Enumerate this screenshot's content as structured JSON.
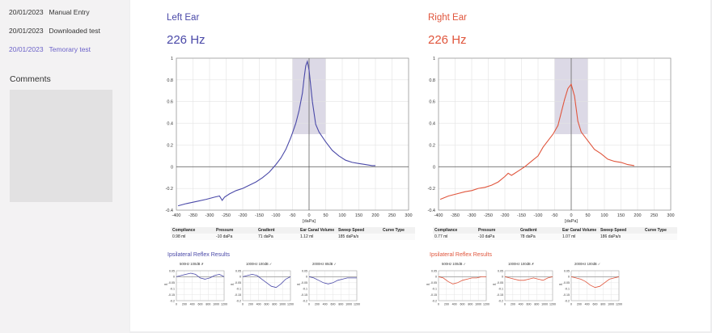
{
  "sidebar": {
    "sessions": [
      {
        "date": "20/01/2023",
        "label": "Manual Entry",
        "active": false
      },
      {
        "date": "20/01/2023",
        "label": "Downloaded test",
        "active": false
      },
      {
        "date": "20/01/2023",
        "label": "Temorary test",
        "active": true
      }
    ],
    "comments_title": "Comments"
  },
  "colors": {
    "left": "#4a49a8",
    "right": "#e0553c",
    "pressure_window": "#dcd9e6"
  },
  "ears": [
    {
      "key": "left",
      "title": "Left Ear",
      "frequency": "226 Hz",
      "table": {
        "headers": [
          "Compliance",
          "Pressure",
          "Gradient",
          "Ear Canal Volume",
          "Sweep Speed",
          "Curve Type"
        ],
        "values": [
          "0.98 ml",
          "-10 daPa",
          "71 daPa",
          "1.12 ml",
          "185 daPa/s",
          ""
        ]
      },
      "reflex": {
        "title": "Ipsilateral Reflex Results",
        "tests": [
          {
            "label": "500Hz   100dB ✗",
            "values": [
              0,
              0.01,
              0.02,
              0.03,
              0.02,
              -0.01,
              -0.02,
              -0.01,
              0.01,
              0.02,
              0
            ]
          },
          {
            "label": "1000Hz   100dB ✓",
            "values": [
              0,
              0.01,
              0.02,
              0.01,
              -0.02,
              -0.05,
              -0.08,
              -0.09,
              -0.06,
              -0.02,
              0
            ]
          },
          {
            "label": "2000Hz   80dB ✓",
            "values": [
              0,
              -0.01,
              -0.03,
              -0.05,
              -0.06,
              -0.05,
              -0.03,
              -0.02,
              -0.01,
              -0.01,
              -0.01
            ]
          }
        ]
      }
    },
    {
      "key": "right",
      "title": "Right Ear",
      "frequency": "226 Hz",
      "table": {
        "headers": [
          "Compliance",
          "Pressure",
          "Gradient",
          "Ear Canal Volume",
          "Sweep Speed",
          "Curve Type"
        ],
        "values": [
          "0.77 ml",
          "-10 daPa",
          "78 daPa",
          "1.07 ml",
          "186 daPa/s",
          ""
        ]
      },
      "reflex": {
        "title": "Ipsilateral Reflex Results",
        "tests": [
          {
            "label": "500Hz   100dB ✓",
            "values": [
              0,
              -0.01,
              -0.04,
              -0.06,
              -0.05,
              -0.03,
              -0.02,
              -0.01,
              -0.01,
              0,
              0
            ]
          },
          {
            "label": "1000Hz   100dB ✗",
            "values": [
              0,
              -0.01,
              -0.02,
              -0.03,
              -0.03,
              -0.02,
              -0.01,
              -0.02,
              -0.03,
              -0.01,
              0
            ]
          },
          {
            "label": "2000Hz   100dB ✓",
            "values": [
              0,
              -0.01,
              -0.02,
              -0.04,
              -0.07,
              -0.09,
              -0.08,
              -0.05,
              -0.02,
              -0.01,
              0
            ]
          }
        ]
      }
    }
  ],
  "chart_data": [
    {
      "type": "line",
      "title": "Left Ear 226 Hz",
      "xlabel": "[daPa]",
      "ylabel": "",
      "xlim": [
        -400,
        300
      ],
      "ylim": [
        -0.4,
        1
      ],
      "x_ticks": [
        -400,
        -350,
        -300,
        -250,
        -200,
        -150,
        -100,
        -50,
        0,
        50,
        100,
        150,
        200,
        250,
        300
      ],
      "y_ticks": [
        1,
        0.8,
        0.6,
        0.4,
        0.2,
        0,
        -0.2,
        -0.4
      ],
      "y_tick_labels": [
        "1",
        "0.8",
        "0.6",
        "0.4",
        "0.2",
        "0",
        "-0.2",
        "-0.4"
      ],
      "pressure_window": {
        "x": [
          -50,
          50
        ],
        "y": [
          0.3,
          1
        ]
      },
      "series": [
        {
          "name": "Left Ear",
          "x": [
            -395,
            -370,
            -340,
            -310,
            -285,
            -270,
            -262,
            -255,
            -240,
            -220,
            -200,
            -180,
            -160,
            -140,
            -120,
            -100,
            -85,
            -70,
            -55,
            -40,
            -30,
            -20,
            -15,
            -10,
            -5,
            0,
            10,
            20,
            30,
            50,
            70,
            90,
            110,
            130,
            150,
            170,
            190,
            200
          ],
          "y": [
            -0.36,
            -0.34,
            -0.32,
            -0.3,
            -0.28,
            -0.27,
            -0.31,
            -0.28,
            -0.25,
            -0.22,
            -0.2,
            -0.17,
            -0.14,
            -0.1,
            -0.05,
            0.02,
            0.08,
            0.16,
            0.27,
            0.4,
            0.52,
            0.68,
            0.82,
            0.93,
            0.97,
            0.89,
            0.6,
            0.39,
            0.32,
            0.23,
            0.15,
            0.1,
            0.06,
            0.04,
            0.03,
            0.02,
            0.01,
            0.01
          ]
        }
      ]
    },
    {
      "type": "line",
      "title": "Right Ear 226 Hz",
      "xlabel": "[daPa]",
      "ylabel": "",
      "xlim": [
        -400,
        300
      ],
      "ylim": [
        -0.4,
        1
      ],
      "x_ticks": [
        -400,
        -350,
        -300,
        -250,
        -200,
        -150,
        -100,
        -50,
        0,
        50,
        100,
        150,
        200,
        250,
        300
      ],
      "y_ticks": [
        1,
        0.8,
        0.6,
        0.4,
        0.2,
        0,
        -0.2,
        -0.4
      ],
      "y_tick_labels": [
        "1",
        "0.8",
        "0.6",
        "0.4",
        "0.2",
        "0",
        "-0.2",
        "-0.4"
      ],
      "pressure_window": {
        "x": [
          -50,
          50
        ],
        "y": [
          0.3,
          1
        ]
      },
      "series": [
        {
          "name": "Right Ear",
          "x": [
            -395,
            -370,
            -345,
            -320,
            -300,
            -280,
            -260,
            -240,
            -220,
            -200,
            -190,
            -180,
            -160,
            -140,
            -120,
            -100,
            -85,
            -70,
            -55,
            -40,
            -30,
            -20,
            -10,
            0,
            10,
            20,
            30,
            50,
            70,
            90,
            110,
            130,
            150,
            170,
            190
          ],
          "y": [
            -0.3,
            -0.27,
            -0.25,
            -0.23,
            -0.22,
            -0.2,
            -0.19,
            -0.17,
            -0.14,
            -0.09,
            -0.06,
            -0.08,
            -0.04,
            0.0,
            0.05,
            0.1,
            0.18,
            0.24,
            0.3,
            0.38,
            0.5,
            0.62,
            0.72,
            0.76,
            0.65,
            0.42,
            0.32,
            0.24,
            0.16,
            0.12,
            0.07,
            0.05,
            0.04,
            0.02,
            0.01
          ]
        }
      ]
    },
    {
      "type": "line",
      "title": "Left 500Hz 100dB",
      "x": [
        0,
        120,
        240,
        360,
        480,
        600,
        720,
        840,
        960,
        1080,
        1200
      ],
      "y": [
        0,
        0.01,
        0.02,
        0.03,
        0.02,
        -0.01,
        -0.02,
        -0.01,
        0.01,
        0.02,
        0
      ],
      "xlim": [
        0,
        1200
      ],
      "ylim": [
        -0.2,
        0.05
      ]
    },
    {
      "type": "line",
      "title": "Left 1000Hz 100dB",
      "x": [
        0,
        120,
        240,
        360,
        480,
        600,
        720,
        840,
        960,
        1080,
        1200
      ],
      "y": [
        0,
        0.01,
        0.02,
        0.01,
        -0.02,
        -0.05,
        -0.08,
        -0.09,
        -0.06,
        -0.02,
        0
      ],
      "xlim": [
        0,
        1200
      ],
      "ylim": [
        -0.2,
        0.05
      ]
    },
    {
      "type": "line",
      "title": "Left 2000Hz 80dB",
      "x": [
        0,
        120,
        240,
        360,
        480,
        600,
        720,
        840,
        960,
        1080,
        1200
      ],
      "y": [
        0,
        -0.01,
        -0.03,
        -0.05,
        -0.06,
        -0.05,
        -0.03,
        -0.02,
        -0.01,
        -0.01,
        -0.01
      ],
      "xlim": [
        0,
        1200
      ],
      "ylim": [
        -0.2,
        0.05
      ]
    },
    {
      "type": "line",
      "title": "Right 500Hz 100dB",
      "x": [
        0,
        120,
        240,
        360,
        480,
        600,
        720,
        840,
        960,
        1080,
        1200
      ],
      "y": [
        0,
        -0.01,
        -0.04,
        -0.06,
        -0.05,
        -0.03,
        -0.02,
        -0.01,
        -0.01,
        0,
        0
      ],
      "xlim": [
        0,
        1200
      ],
      "ylim": [
        -0.2,
        0.05
      ]
    },
    {
      "type": "line",
      "title": "Right 1000Hz 100dB",
      "x": [
        0,
        120,
        240,
        360,
        480,
        600,
        720,
        840,
        960,
        1080,
        1200
      ],
      "y": [
        0,
        -0.01,
        -0.02,
        -0.03,
        -0.03,
        -0.02,
        -0.01,
        -0.02,
        -0.03,
        -0.01,
        0
      ],
      "xlim": [
        0,
        1200
      ],
      "ylim": [
        -0.2,
        0.05
      ]
    },
    {
      "type": "line",
      "title": "Right 2000Hz 100dB",
      "x": [
        0,
        120,
        240,
        360,
        480,
        600,
        720,
        840,
        960,
        1080,
        1200
      ],
      "y": [
        0,
        -0.01,
        -0.02,
        -0.04,
        -0.07,
        -0.09,
        -0.08,
        -0.05,
        -0.02,
        -0.01,
        0
      ],
      "xlim": [
        0,
        1200
      ],
      "ylim": [
        -0.2,
        0.05
      ]
    }
  ],
  "reflex_axes": {
    "x_ticks": [
      0,
      200,
      400,
      600,
      800,
      1000,
      1200
    ],
    "x_tick_labels": [
      "0",
      "200",
      "400",
      "600",
      "800",
      "1000",
      "1200"
    ],
    "y_ticks": [
      0.05,
      0,
      -0.05,
      -0.1,
      -0.15,
      -0.2
    ],
    "y_tick_labels": [
      "0.05",
      "0",
      "-0.05",
      "-0.1",
      "-0.15",
      "-0.2"
    ],
    "ylabel": "ml"
  }
}
